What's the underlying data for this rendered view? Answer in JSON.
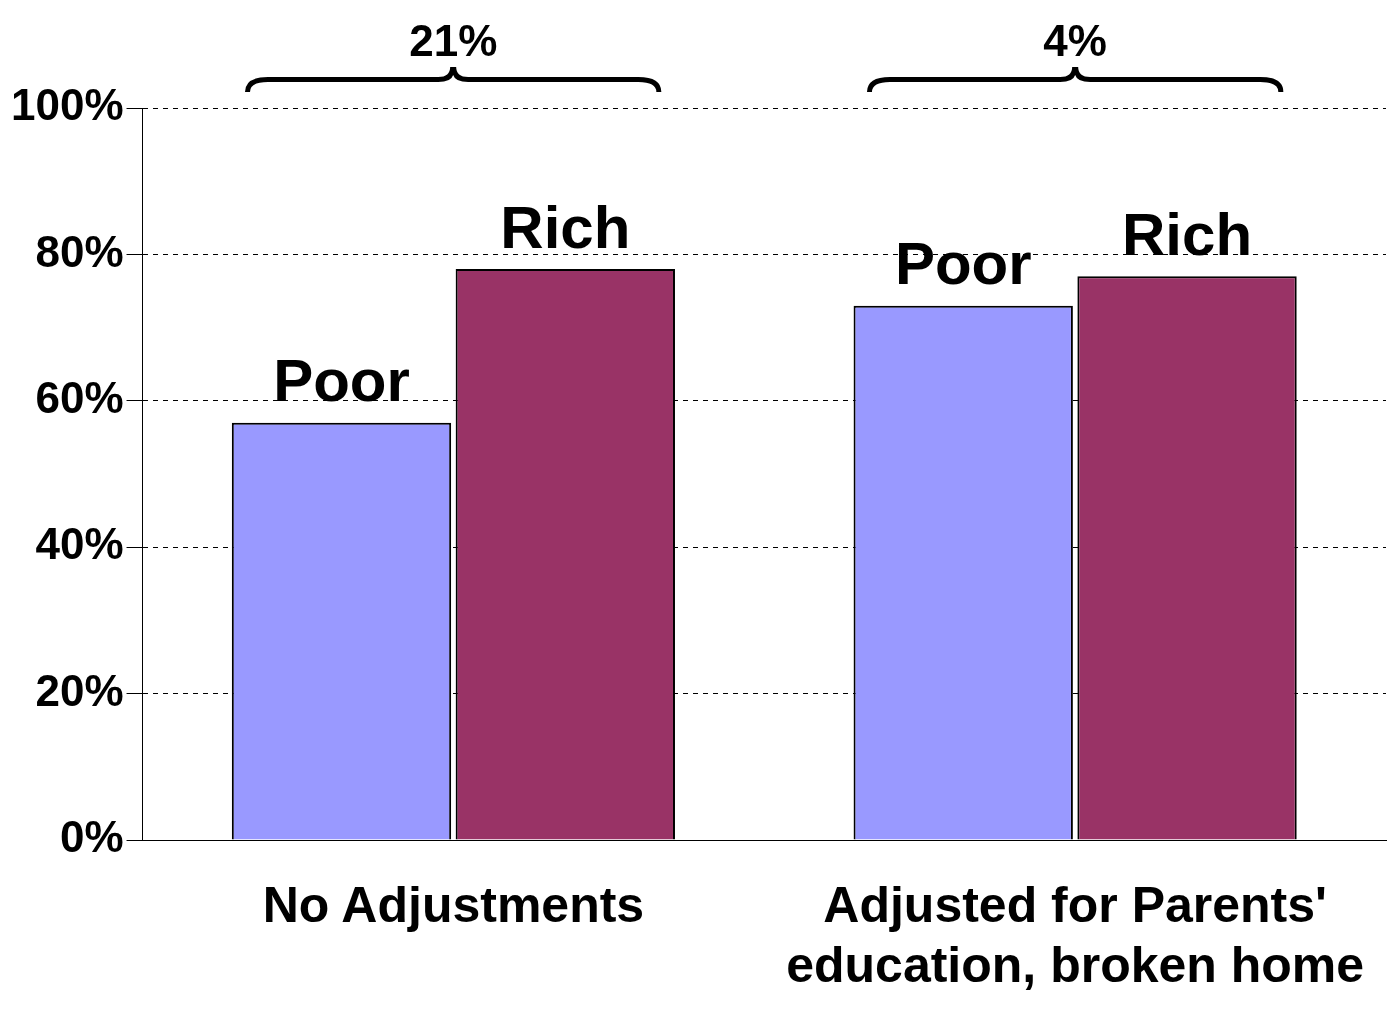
{
  "chart_data": {
    "type": "bar",
    "categories": [
      "No Adjustments",
      "Adjusted for Parents' education, broken home"
    ],
    "series": [
      {
        "name": "Poor",
        "color": "#9999ff",
        "values": [
          57,
          73
        ]
      },
      {
        "name": "Rich",
        "color": "#993366",
        "values": [
          78,
          77
        ]
      }
    ],
    "ylim": [
      0,
      100
    ],
    "yticks": [
      {
        "value": 0,
        "label": "0%"
      },
      {
        "value": 20,
        "label": "20%"
      },
      {
        "value": 40,
        "label": "40%"
      },
      {
        "value": 60,
        "label": "60%"
      },
      {
        "value": 80,
        "label": "80%"
      },
      {
        "value": 100,
        "label": "100%"
      }
    ],
    "grid": "y",
    "legend": false,
    "line_style": "dashed",
    "annotations": [
      "21%",
      "4%"
    ]
  }
}
